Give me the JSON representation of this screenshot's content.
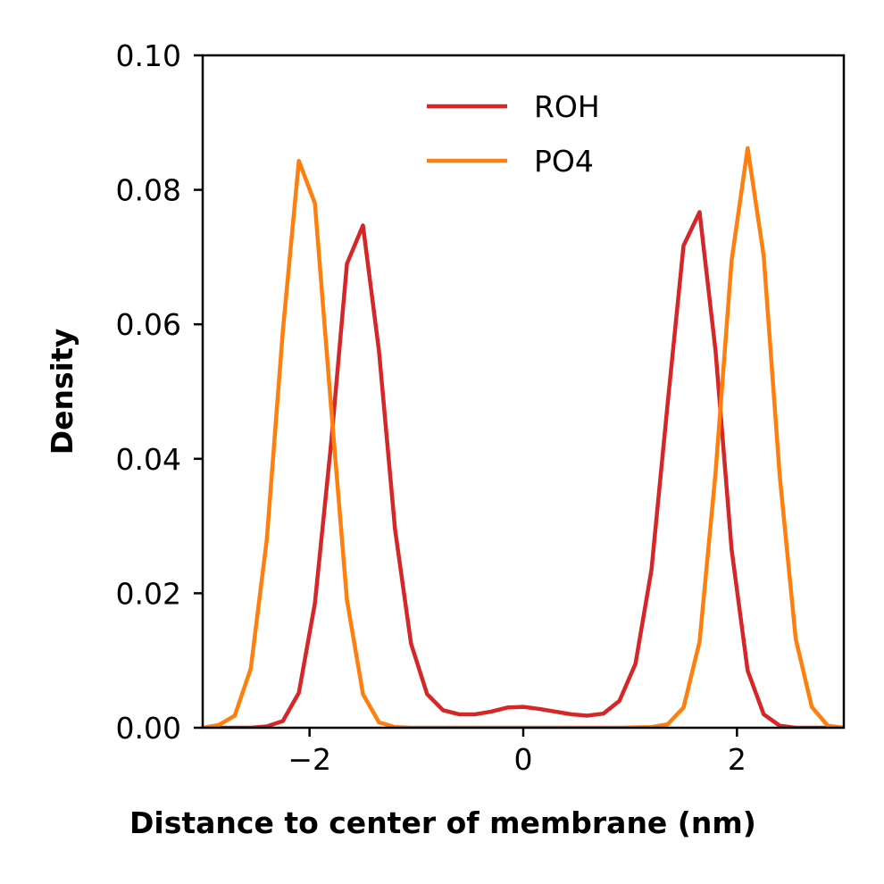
{
  "chart_data": {
    "type": "line",
    "xlabel": "Distance to center of membrane (nm)",
    "ylabel": "Density",
    "xlim": [
      -3,
      3
    ],
    "ylim": [
      0,
      0.1
    ],
    "x_ticks": [
      -2,
      0,
      2
    ],
    "x_tick_labels": [
      "−2",
      "0",
      "2"
    ],
    "y_ticks": [
      0,
      0.02,
      0.04,
      0.06,
      0.08,
      0.1
    ],
    "y_tick_labels": [
      "0.00",
      "0.02",
      "0.04",
      "0.06",
      "0.08",
      "0.10"
    ],
    "grid": false,
    "legend": "top-center",
    "series": [
      {
        "name": "ROH",
        "color": "#d62728",
        "x": [
          -3.0,
          -2.85,
          -2.7,
          -2.55,
          -2.4,
          -2.25,
          -2.1,
          -1.95,
          -1.8,
          -1.65,
          -1.5,
          -1.35,
          -1.2,
          -1.05,
          -0.9,
          -0.75,
          -0.6,
          -0.45,
          -0.3,
          -0.15,
          0.0,
          0.15,
          0.3,
          0.45,
          0.6,
          0.75,
          0.9,
          1.05,
          1.2,
          1.35,
          1.5,
          1.65,
          1.8,
          1.95,
          2.1,
          2.25,
          2.4,
          2.55,
          2.7,
          2.85,
          3.0
        ],
        "y": [
          0.0,
          0.0,
          0.0,
          0.0,
          0.0002,
          0.001,
          0.0052,
          0.0185,
          0.042,
          0.069,
          0.0747,
          0.056,
          0.0295,
          0.0125,
          0.005,
          0.0026,
          0.002,
          0.002,
          0.0024,
          0.003,
          0.0031,
          0.0028,
          0.0024,
          0.002,
          0.0018,
          0.0021,
          0.004,
          0.0095,
          0.0235,
          0.048,
          0.0717,
          0.0767,
          0.056,
          0.0265,
          0.0085,
          0.002,
          0.0003,
          0.0,
          0.0,
          0.0,
          0.0
        ]
      },
      {
        "name": "PO4",
        "color": "#ff7f0e",
        "x": [
          -3.0,
          -2.85,
          -2.7,
          -2.55,
          -2.4,
          -2.25,
          -2.1,
          -1.95,
          -1.8,
          -1.65,
          -1.5,
          -1.35,
          -1.2,
          -1.05,
          -0.9,
          0.0,
          0.9,
          1.2,
          1.35,
          1.5,
          1.65,
          1.8,
          1.95,
          2.1,
          2.25,
          2.4,
          2.55,
          2.7,
          2.85,
          3.0
        ],
        "y": [
          0.0,
          0.0004,
          0.0018,
          0.0088,
          0.028,
          0.059,
          0.0843,
          0.078,
          0.048,
          0.019,
          0.005,
          0.0008,
          0.0001,
          0.0,
          0.0,
          0.0,
          0.0,
          0.0001,
          0.0005,
          0.003,
          0.0128,
          0.038,
          0.0695,
          0.0862,
          0.0702,
          0.0375,
          0.0132,
          0.0031,
          0.0003,
          0.0
        ]
      }
    ]
  }
}
